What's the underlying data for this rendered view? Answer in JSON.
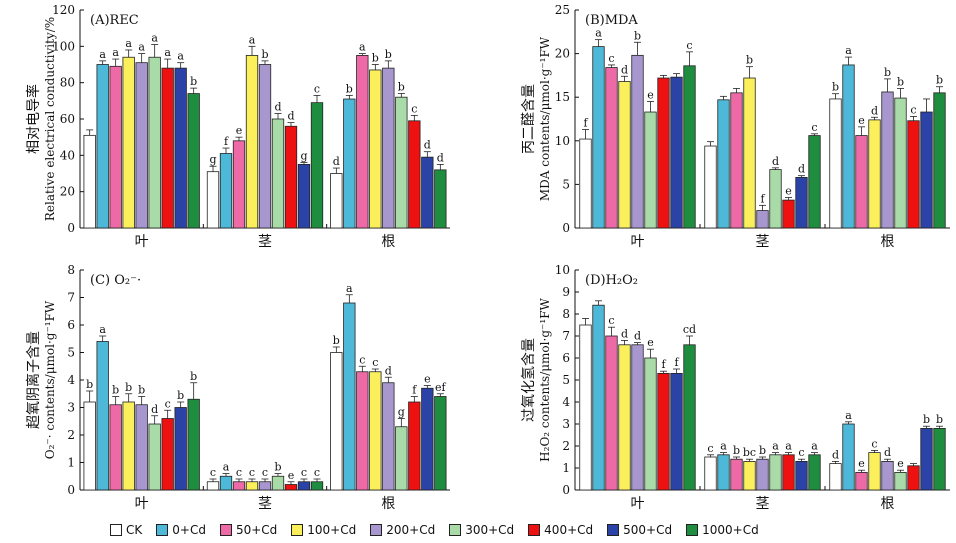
{
  "groups": [
    "叶",
    "茎",
    "根"
  ],
  "legend": [
    "CK",
    "0+Cd",
    "50+Cd",
    "100+Cd",
    "200+Cd",
    "300+Cd",
    "400+Cd",
    "500+Cd",
    "1000+Cd"
  ],
  "series_colors": [
    "#ffffff",
    "#4db8d8",
    "#ee6aa7",
    "#fbef5b",
    "#a897cf",
    "#a9dba9",
    "#ee1111",
    "#2b43a6",
    "#1f8d3f"
  ],
  "chart_data": [
    {
      "type": "bar",
      "panel_title": "(A)REC",
      "ylabel_cn": "相对电导率",
      "ylabel_en": "Relative electrical conductivity/%",
      "ylim": [
        0,
        120
      ],
      "yticks": [
        0,
        20,
        40,
        60,
        80,
        100,
        120
      ],
      "categories": [
        "叶",
        "茎",
        "根"
      ],
      "series": [
        {
          "name": "CK",
          "values": [
            51,
            31,
            30
          ],
          "errors": [
            3,
            3,
            3
          ],
          "letters": [
            "",
            "g",
            "d"
          ]
        },
        {
          "name": "0+Cd",
          "values": [
            90,
            41,
            71
          ],
          "errors": [
            2,
            3,
            2
          ],
          "letters": [
            "a",
            "f",
            "b"
          ]
        },
        {
          "name": "50+Cd",
          "values": [
            89,
            48,
            95
          ],
          "errors": [
            4,
            2,
            1
          ],
          "letters": [
            "a",
            "e",
            "a"
          ]
        },
        {
          "name": "100+Cd",
          "values": [
            94,
            95,
            87
          ],
          "errors": [
            4,
            5,
            3
          ],
          "letters": [
            "a",
            "a",
            "b"
          ]
        },
        {
          "name": "200+Cd",
          "values": [
            91,
            90,
            88
          ],
          "errors": [
            5,
            2,
            4
          ],
          "letters": [
            "a",
            "b",
            "b"
          ]
        },
        {
          "name": "300+Cd",
          "values": [
            94,
            60,
            72
          ],
          "errors": [
            7,
            3,
            2
          ],
          "letters": [
            "a",
            "d",
            "b"
          ]
        },
        {
          "name": "400+Cd",
          "values": [
            88,
            56,
            59
          ],
          "errors": [
            5,
            2,
            3
          ],
          "letters": [
            "a",
            "d",
            "c"
          ]
        },
        {
          "name": "500+Cd",
          "values": [
            88,
            35,
            39
          ],
          "errors": [
            3,
            1,
            3
          ],
          "letters": [
            "a",
            "g",
            "d"
          ]
        },
        {
          "name": "1000+Cd",
          "values": [
            74,
            69,
            32
          ],
          "errors": [
            3,
            4,
            3
          ],
          "letters": [
            "b",
            "c",
            "d"
          ]
        }
      ]
    },
    {
      "type": "bar",
      "panel_title": "(B)MDA",
      "ylabel_cn": "丙二醛含量",
      "ylabel_en": "MDA contents/μmol·g⁻¹FW",
      "ylim": [
        0,
        25
      ],
      "yticks": [
        0,
        5,
        10,
        15,
        20,
        25
      ],
      "categories": [
        "叶",
        "茎",
        "根"
      ],
      "series": [
        {
          "name": "CK",
          "values": [
            10.2,
            9.4,
            14.8
          ],
          "errors": [
            1.1,
            0.5,
            0.6
          ],
          "letters": [
            "f",
            "",
            "b"
          ]
        },
        {
          "name": "0+Cd",
          "values": [
            20.8,
            14.7,
            18.7
          ],
          "errors": [
            0.8,
            0.4,
            0.9
          ],
          "letters": [
            "a",
            "",
            "a"
          ]
        },
        {
          "name": "50+Cd",
          "values": [
            18.4,
            15.5,
            10.6
          ],
          "errors": [
            0.3,
            0.5,
            1.0
          ],
          "letters": [
            "c",
            "",
            "e"
          ]
        },
        {
          "name": "100+Cd",
          "values": [
            16.8,
            17.2,
            12.4
          ],
          "errors": [
            0.6,
            1.3,
            0.3
          ],
          "letters": [
            "d",
            "b",
            "d"
          ]
        },
        {
          "name": "200+Cd",
          "values": [
            19.8,
            2.0,
            15.6
          ],
          "errors": [
            1.5,
            0.6,
            1.5
          ],
          "letters": [
            "b",
            "f",
            "b"
          ]
        },
        {
          "name": "300+Cd",
          "values": [
            13.3,
            6.7,
            14.9
          ],
          "errors": [
            1.2,
            0.2,
            1.1
          ],
          "letters": [
            "e",
            "d",
            "b"
          ]
        },
        {
          "name": "400+Cd",
          "values": [
            17.2,
            3.2,
            12.3
          ],
          "errors": [
            0.3,
            0.3,
            0.5
          ],
          "letters": [
            "",
            "e",
            "c"
          ]
        },
        {
          "name": "500+Cd",
          "values": [
            17.3,
            5.8,
            13.3
          ],
          "errors": [
            0.4,
            0.2,
            1.5
          ],
          "letters": [
            "",
            "d",
            ""
          ]
        },
        {
          "name": "1000+Cd",
          "values": [
            18.6,
            10.6,
            15.5
          ],
          "errors": [
            1.6,
            0.2,
            0.7
          ],
          "letters": [
            "c",
            "c",
            "b"
          ]
        }
      ]
    },
    {
      "type": "bar",
      "panel_title": "(C) O₂⁻·",
      "ylabel_cn": "超氧阴离子含量",
      "ylabel_en": "O₂⁻· contents/μmol·g⁻¹FW",
      "ylim": [
        0,
        8
      ],
      "yticks": [
        0,
        1,
        2,
        3,
        4,
        5,
        6,
        7,
        8
      ],
      "categories": [
        "叶",
        "茎",
        "根"
      ],
      "series": [
        {
          "name": "CK",
          "values": [
            3.2,
            0.3,
            5.0
          ],
          "errors": [
            0.4,
            0.1,
            0.2
          ],
          "letters": [
            "b",
            "c",
            "b"
          ]
        },
        {
          "name": "0+Cd",
          "values": [
            5.4,
            0.5,
            6.8
          ],
          "errors": [
            0.2,
            0.1,
            0.3
          ],
          "letters": [
            "a",
            "a",
            "a"
          ]
        },
        {
          "name": "50+Cd",
          "values": [
            3.1,
            0.3,
            4.3
          ],
          "errors": [
            0.3,
            0.1,
            0.2
          ],
          "letters": [
            "b",
            "c",
            "c"
          ]
        },
        {
          "name": "100+Cd",
          "values": [
            3.2,
            0.3,
            4.3
          ],
          "errors": [
            0.3,
            0.1,
            0.1
          ],
          "letters": [
            "b",
            "c",
            "c"
          ]
        },
        {
          "name": "200+Cd",
          "values": [
            3.1,
            0.3,
            3.9
          ],
          "errors": [
            0.3,
            0.1,
            0.2
          ],
          "letters": [
            "b",
            "c",
            "d"
          ]
        },
        {
          "name": "300+Cd",
          "values": [
            2.4,
            0.5,
            2.3
          ],
          "errors": [
            0.3,
            0.1,
            0.3
          ],
          "letters": [
            "d",
            "b",
            "g"
          ]
        },
        {
          "name": "400+Cd",
          "values": [
            2.6,
            0.2,
            3.2
          ],
          "errors": [
            0.3,
            0.1,
            0.2
          ],
          "letters": [
            "c",
            "e",
            "f"
          ]
        },
        {
          "name": "500+Cd",
          "values": [
            3.0,
            0.3,
            3.7
          ],
          "errors": [
            0.2,
            0.1,
            0.1
          ],
          "letters": [
            "b",
            "c",
            "e"
          ]
        },
        {
          "name": "1000+Cd",
          "values": [
            3.3,
            0.3,
            3.4
          ],
          "errors": [
            0.6,
            0.1,
            0.1
          ],
          "letters": [
            "b",
            "c",
            "ef"
          ]
        }
      ]
    },
    {
      "type": "bar",
      "panel_title": "(D)H₂O₂",
      "ylabel_cn": "过氧化氢含量",
      "ylabel_en": "H₂O₂ contents/μmol·g⁻¹FW",
      "ylim": [
        0,
        10
      ],
      "yticks": [
        0,
        1,
        2,
        3,
        4,
        5,
        6,
        7,
        8,
        9,
        10
      ],
      "categories": [
        "叶",
        "茎",
        "根"
      ],
      "series": [
        {
          "name": "CK",
          "values": [
            7.5,
            1.5,
            1.2
          ],
          "errors": [
            0.3,
            0.1,
            0.1
          ],
          "letters": [
            "",
            "c",
            "d"
          ]
        },
        {
          "name": "0+Cd",
          "values": [
            8.4,
            1.6,
            3.0
          ],
          "errors": [
            0.2,
            0.1,
            0.1
          ],
          "letters": [
            "",
            "a",
            "a"
          ]
        },
        {
          "name": "50+Cd",
          "values": [
            7.0,
            1.4,
            0.8
          ],
          "errors": [
            0.4,
            0.1,
            0.1
          ],
          "letters": [
            "c",
            "b",
            "e"
          ]
        },
        {
          "name": "100+Cd",
          "values": [
            6.6,
            1.3,
            1.7
          ],
          "errors": [
            0.2,
            0.1,
            0.1
          ],
          "letters": [
            "d",
            "bc",
            "c"
          ]
        },
        {
          "name": "200+Cd",
          "values": [
            6.6,
            1.4,
            1.3
          ],
          "errors": [
            0.1,
            0.1,
            0.1
          ],
          "letters": [
            "d",
            "b",
            "d"
          ]
        },
        {
          "name": "300+Cd",
          "values": [
            6.0,
            1.6,
            0.8
          ],
          "errors": [
            0.4,
            0.1,
            0.1
          ],
          "letters": [
            "e",
            "a",
            "e"
          ]
        },
        {
          "name": "400+Cd",
          "values": [
            5.3,
            1.6,
            1.1
          ],
          "errors": [
            0.1,
            0.1,
            0.1
          ],
          "letters": [
            "f",
            "a",
            ""
          ]
        },
        {
          "name": "500+Cd",
          "values": [
            5.3,
            1.3,
            2.8
          ],
          "errors": [
            0.2,
            0.1,
            0.1
          ],
          "letters": [
            "f",
            "c",
            "b"
          ]
        },
        {
          "name": "1000+Cd",
          "values": [
            6.6,
            1.6,
            2.8
          ],
          "errors": [
            0.4,
            0.1,
            0.1
          ],
          "letters": [
            "cd",
            "a",
            "b"
          ]
        }
      ]
    }
  ]
}
